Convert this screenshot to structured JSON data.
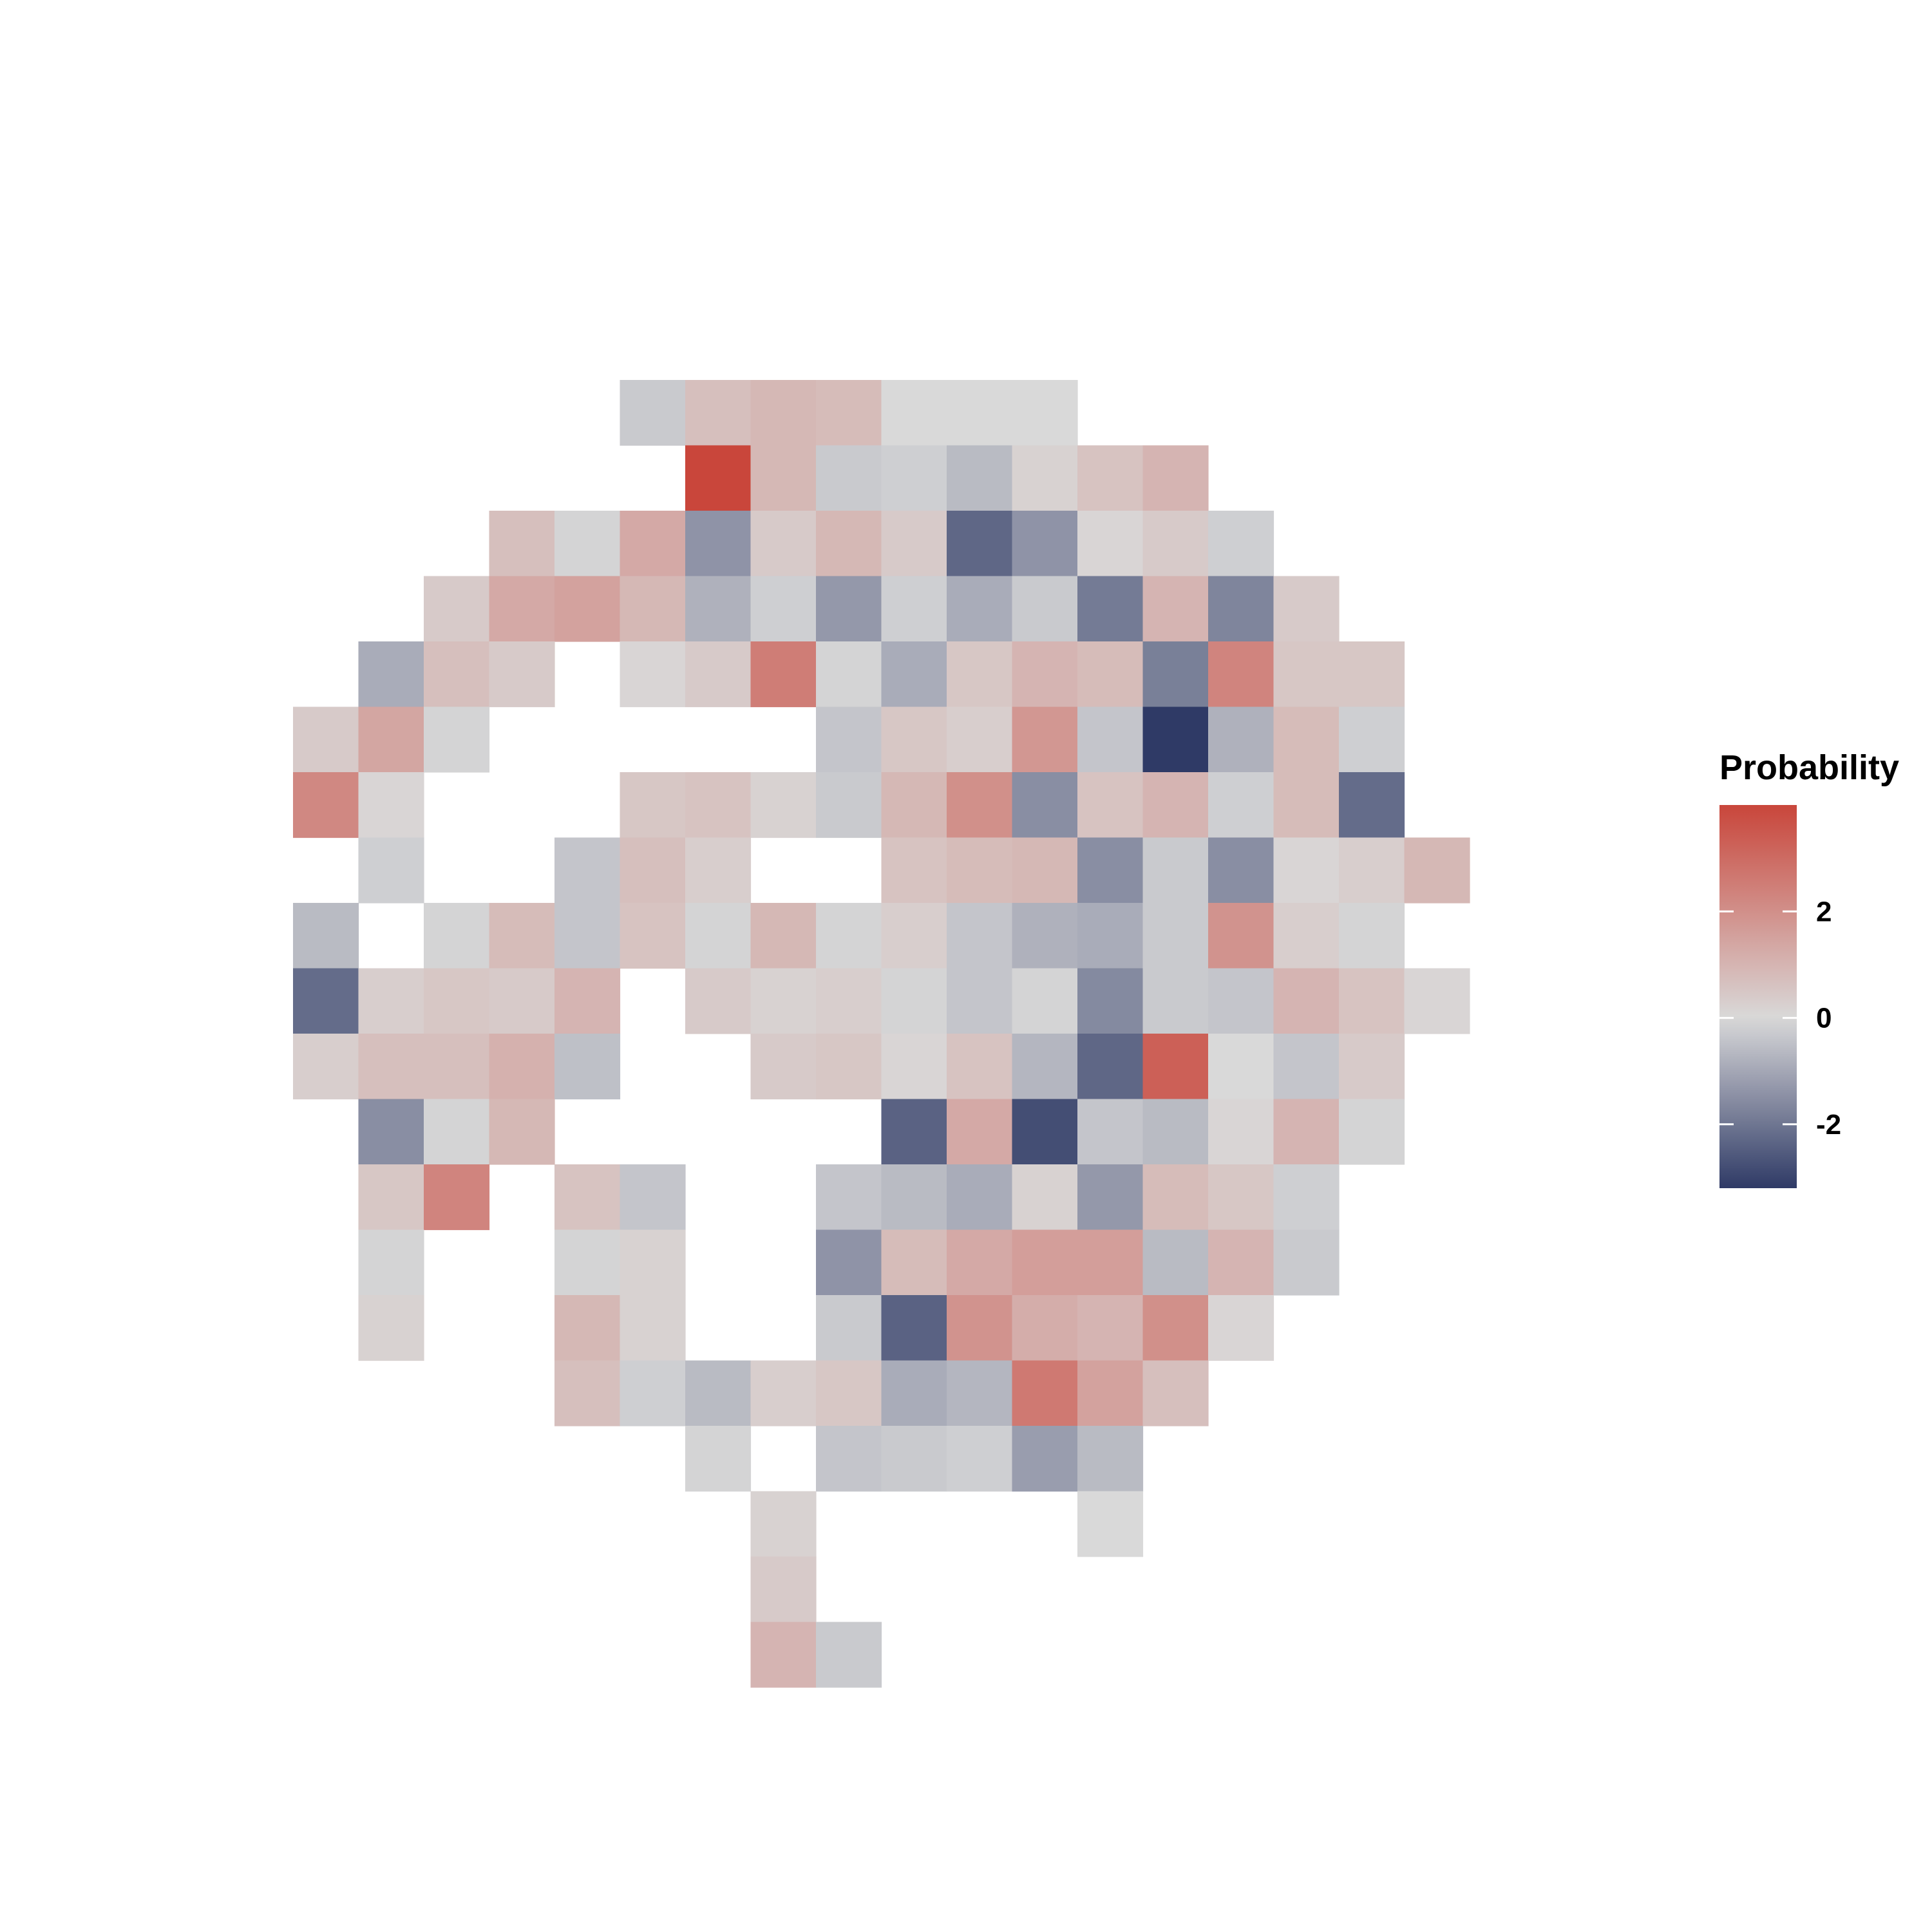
{
  "chart_data": {
    "type": "heatmap",
    "title": "",
    "xlabel": "",
    "ylabel": "",
    "grid": false,
    "legend": {
      "title": "Probability",
      "placement": "right",
      "ticks": [
        2,
        0,
        -2
      ],
      "tick_labels": [
        "2",
        "0",
        "-2"
      ],
      "range": [
        -3.2,
        4.0
      ]
    },
    "colors": {
      "low": "#2f3a66",
      "mid": "#d9d9d9",
      "high": "#c9463b",
      "background": "#ffffff"
    },
    "rows": [
      {
        "y": 0,
        "start": 5,
        "values": [
          -0.3,
          0.7,
          0.9,
          0.8,
          0.0,
          0.0,
          0.0
        ]
      },
      {
        "y": 1,
        "start": 6,
        "values": [
          4.0,
          0.9,
          -0.3,
          -0.2,
          -0.6,
          0.2,
          0.6,
          1.0
        ]
      },
      {
        "y": 2,
        "start": 3,
        "values": [
          0.7,
          -0.1,
          1.3,
          -1.4,
          0.4,
          0.9,
          0.4,
          -2.3,
          -1.4,
          0.1,
          0.4,
          -0.2
        ]
      },
      {
        "y": 3,
        "start": 2,
        "values": [
          0.4,
          1.3,
          1.5,
          0.9,
          -0.8,
          -0.2,
          -1.3,
          -0.2,
          -0.9,
          -0.3,
          -1.9,
          1.0,
          -1.7,
          0.4
        ]
      },
      {
        "y": 4,
        "start": 1,
        "values": [
          -0.9,
          0.7,
          0.4,
          null,
          0.1,
          0.4,
          2.5,
          -0.1,
          -0.9,
          0.5,
          1.0,
          0.8,
          -1.8,
          2.3,
          0.5,
          0.5
        ]
      },
      {
        "y": 5,
        "start": 0,
        "values": [
          0.4,
          1.4,
          -0.1,
          null,
          null,
          null,
          null,
          null,
          -0.4,
          0.5,
          0.3,
          1.8,
          -0.4,
          -3.2,
          -0.8,
          0.8,
          -0.2
        ]
      },
      {
        "y": 6,
        "start": 0,
        "values": [
          2.2,
          0.1,
          null,
          null,
          null,
          0.5,
          0.6,
          0.2,
          -0.3,
          0.9,
          2.0,
          -1.5,
          0.6,
          1.0,
          -0.2,
          0.8,
          -2.2
        ]
      },
      {
        "y": 7,
        "start": 1,
        "values": [
          -0.2,
          null,
          null,
          -0.4,
          0.7,
          0.3,
          null,
          null,
          0.6,
          0.8,
          0.9,
          -1.5,
          -0.3,
          -1.5,
          0.1,
          0.3,
          0.9
        ]
      },
      {
        "y": 8,
        "start": 0,
        "values": [
          -0.6,
          null,
          -0.1,
          0.8,
          -0.4,
          0.6,
          -0.1,
          0.9,
          -0.1,
          0.3,
          -0.4,
          -0.8,
          -0.9,
          -0.3,
          1.9,
          0.3,
          -0.1
        ]
      },
      {
        "y": 9,
        "start": 0,
        "values": [
          -2.2,
          0.3,
          0.5,
          0.4,
          1.0,
          null,
          0.4,
          0.2,
          0.3,
          -0.1,
          -0.4,
          -0.1,
          -1.6,
          -0.3,
          -0.4,
          1.0,
          0.6,
          0.1
        ]
      },
      {
        "y": 10,
        "start": 0,
        "values": [
          0.3,
          0.7,
          0.7,
          1.1,
          -0.5,
          null,
          null,
          0.4,
          0.5,
          0.1,
          0.6,
          -0.7,
          -2.3,
          3.3,
          0.0,
          -0.4,
          0.4
        ]
      },
      {
        "y": 11,
        "start": 1,
        "values": [
          -1.5,
          -0.1,
          0.9,
          null,
          null,
          null,
          null,
          null,
          -2.4,
          1.3,
          -2.8,
          -0.4,
          -0.6,
          0.1,
          1.0,
          -0.1
        ]
      },
      {
        "y": 12,
        "start": 1,
        "values": [
          0.5,
          2.3,
          null,
          0.6,
          -0.4,
          null,
          null,
          -0.4,
          -0.6,
          -0.9,
          0.2,
          -1.3,
          0.8,
          0.5,
          -0.2
        ]
      },
      {
        "y": 13,
        "start": 1,
        "values": [
          -0.1,
          null,
          null,
          -0.1,
          0.2,
          null,
          null,
          -1.4,
          0.8,
          1.3,
          1.6,
          1.6,
          -0.6,
          1.0,
          -0.3
        ]
      },
      {
        "y": 14,
        "start": 1,
        "values": [
          0.2,
          null,
          null,
          0.9,
          0.2,
          null,
          null,
          -0.3,
          -2.4,
          1.9,
          1.2,
          1.0,
          2.0,
          0.1
        ]
      },
      {
        "y": 15,
        "start": 4,
        "values": [
          0.7,
          -0.2,
          -0.6,
          0.3,
          0.5,
          -0.9,
          -0.7,
          2.6,
          1.5,
          0.7
        ]
      },
      {
        "y": 16,
        "start": 6,
        "values": [
          -0.1,
          null,
          -0.4,
          -0.3,
          -0.2,
          -1.2,
          -0.6
        ]
      },
      {
        "y": 17,
        "start": 7,
        "values": [
          0.2,
          null,
          null,
          null,
          null,
          0.0
        ]
      },
      {
        "y": 18,
        "start": 7,
        "values": [
          0.4
        ]
      },
      {
        "y": 19,
        "start": 7,
        "values": [
          1.0,
          -0.3
        ]
      }
    ]
  }
}
